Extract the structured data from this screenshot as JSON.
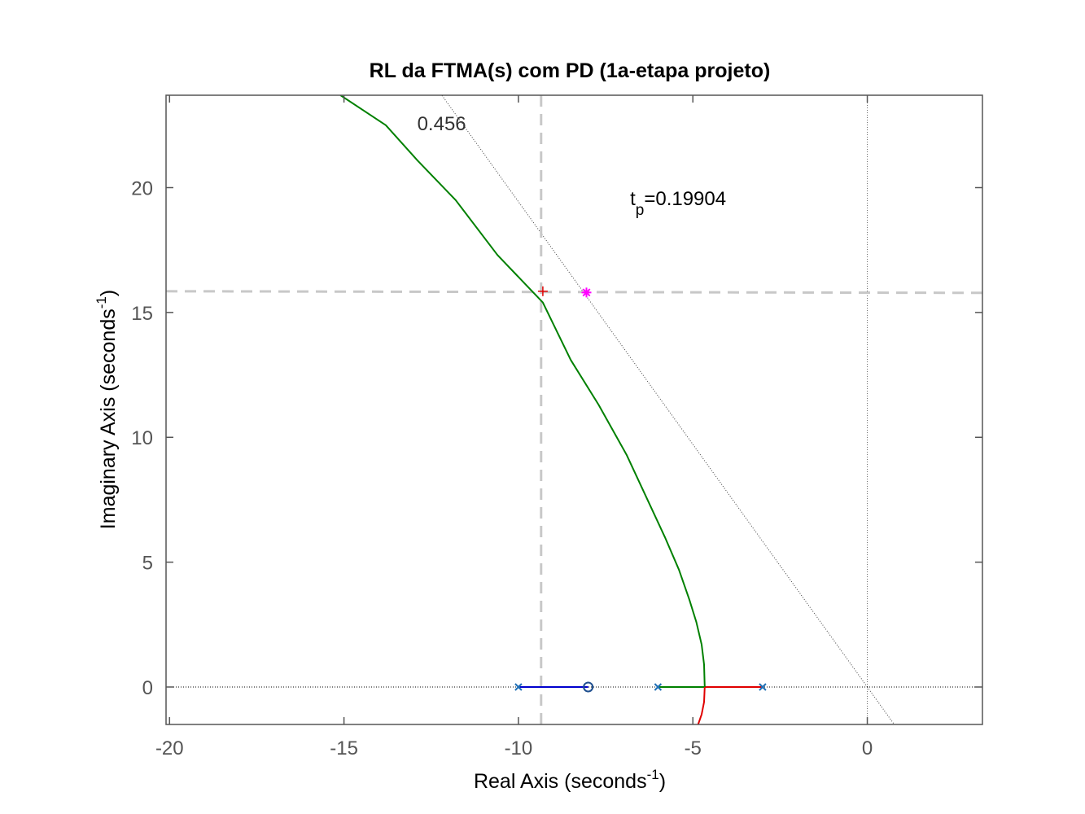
{
  "chart_data": {
    "type": "line",
    "title": "RL da FTMA(s) com PD (1a-etapa projeto)",
    "xlabel": {
      "main": "Real Axis (seconds",
      "sup": "-1",
      "close": ")"
    },
    "ylabel": {
      "main": "Imaginary Axis (seconds",
      "sup": "-1",
      "close": ")"
    },
    "xlim": [
      -20.1,
      3.3
    ],
    "ylim": [
      -1.5,
      23.7
    ],
    "xticks": [
      -20,
      -15,
      -10,
      -5,
      0
    ],
    "yticks": [
      0,
      5,
      10,
      15,
      20
    ],
    "xtick_labels": [
      "-20",
      "-15",
      "-10",
      "-5",
      "0"
    ],
    "ytick_labels": [
      "0",
      "5",
      "10",
      "15",
      "20"
    ],
    "grid": false,
    "poles": [
      [
        -10,
        0
      ],
      [
        -6,
        0
      ],
      [
        -3,
        0
      ]
    ],
    "zeros": [
      [
        -8,
        0
      ]
    ],
    "series": [
      {
        "color": "#0000cd",
        "x": [
          -10,
          -8
        ],
        "y": [
          0,
          0
        ]
      },
      {
        "color": "#008000",
        "x": [
          -6,
          -4.66
        ],
        "y": [
          0,
          0
        ]
      },
      {
        "color": "#e00000",
        "x": [
          -3,
          -4.66
        ],
        "y": [
          0,
          0
        ]
      },
      {
        "color": "#e00000",
        "x": [
          -4.66,
          -4.68,
          -4.75,
          -4.85
        ],
        "y": [
          0,
          -0.6,
          -1.1,
          -1.5
        ]
      },
      {
        "color": "#008000",
        "x": [
          -4.66,
          -4.68,
          -4.75,
          -4.9,
          -5.1,
          -5.4,
          -5.8,
          -6.3,
          -6.9,
          -7.7,
          -8.5,
          -9.3,
          -10.6,
          -11.8,
          -12.9,
          -13.8,
          -15.1
        ],
        "y": [
          0,
          0.9,
          1.7,
          2.6,
          3.5,
          4.7,
          6.0,
          7.5,
          9.3,
          11.3,
          13.1,
          15.4,
          17.3,
          19.5,
          21.1,
          22.5,
          23.7
        ]
      }
    ],
    "damping_line": {
      "zeta_label": "0.456",
      "label_at": [
        -12.2,
        22.3
      ],
      "x": [
        0,
        -12.4
      ],
      "y": [
        0,
        24.1
      ],
      "mirror_to_y": -1.5
    },
    "design_point": {
      "x": -8.05,
      "y": 15.8,
      "color": "#ff00ff"
    },
    "selected_point": {
      "x": -9.3,
      "y": 15.85,
      "color": "#e00000"
    },
    "guide_lines": {
      "x": -9.35,
      "y": 15.85,
      "color": "#c8c8c8"
    },
    "annotation": {
      "main": "t",
      "sub": "p",
      "rest": "=0.19904",
      "at": [
        -6.8,
        19.3
      ]
    }
  }
}
